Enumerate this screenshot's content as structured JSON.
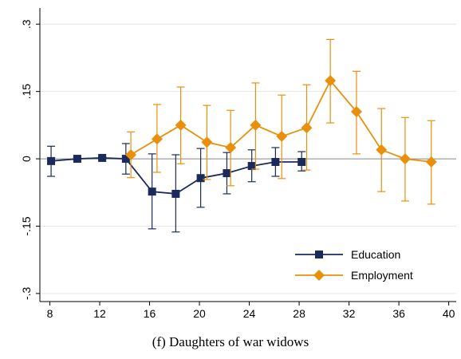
{
  "chart_data": {
    "type": "line",
    "caption": "(f) Daughters of war widows",
    "xlim": [
      7.2,
      40.6
    ],
    "xticks": [
      8,
      12,
      16,
      20,
      24,
      28,
      32,
      36,
      40
    ],
    "ylim": [
      -0.318,
      0.336
    ],
    "yticks": [
      {
        "value": -0.3,
        "label": "-.3"
      },
      {
        "value": -0.15,
        "label": "-.15"
      },
      {
        "value": 0,
        "label": "0"
      },
      {
        "value": 0.15,
        "label": ".15"
      },
      {
        "value": 0.3,
        "label": ".3"
      }
    ],
    "grid": true,
    "legend": "lower right",
    "series": [
      {
        "name": "Education",
        "color": "#1a2a5a",
        "marker": "square",
        "x": [
          8.1,
          10.2,
          12.2,
          14.1,
          16.2,
          18.1,
          20.1,
          22.2,
          24.2,
          26.1,
          28.2
        ],
        "values": [
          -0.005,
          0,
          0.002,
          0,
          -0.073,
          -0.078,
          -0.043,
          -0.032,
          -0.016,
          -0.007,
          -0.007
        ],
        "lo": [
          -0.039,
          -0.003,
          -0.001,
          -0.034,
          -0.156,
          -0.163,
          -0.108,
          -0.078,
          -0.051,
          -0.039,
          -0.027
        ],
        "hi": [
          0.028,
          0.003,
          0.005,
          0.034,
          0.011,
          0.009,
          0.023,
          0.014,
          0.02,
          0.025,
          0.016
        ]
      },
      {
        "name": "Employment",
        "color": "#e8900c",
        "marker": "diamond",
        "x": [
          14.5,
          16.6,
          18.5,
          20.6,
          22.5,
          24.5,
          26.6,
          28.6,
          30.5,
          32.6,
          34.6,
          36.5,
          38.6
        ],
        "values": [
          0.009,
          0.044,
          0.075,
          0.037,
          0.025,
          0.075,
          0.05,
          0.069,
          0.174,
          0.105,
          0.02,
          0,
          -0.007
        ],
        "lo": [
          -0.042,
          -0.03,
          -0.011,
          -0.046,
          -0.06,
          -0.023,
          -0.044,
          -0.025,
          0.08,
          0.011,
          -0.073,
          -0.094,
          -0.101
        ],
        "hi": [
          0.06,
          0.121,
          0.16,
          0.119,
          0.108,
          0.169,
          0.142,
          0.165,
          0.266,
          0.195,
          0.112,
          0.092,
          0.085
        ]
      }
    ]
  }
}
